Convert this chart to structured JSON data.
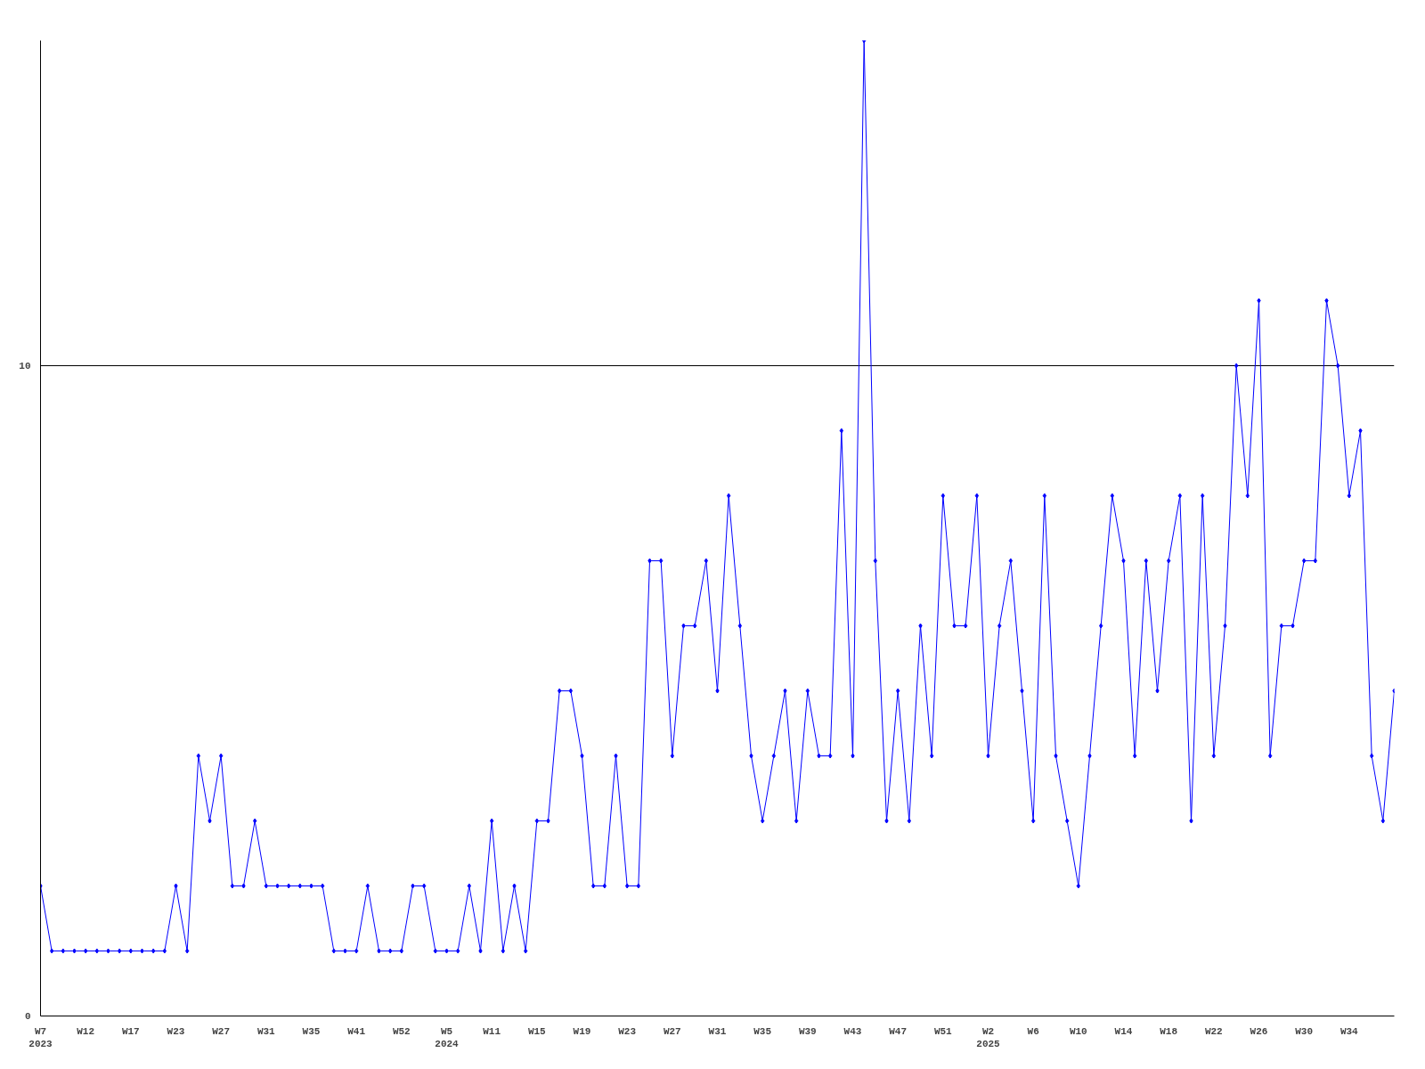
{
  "chart_data": {
    "type": "line",
    "categories": [
      "W7\n2023",
      null,
      null,
      null,
      "W12",
      null,
      null,
      null,
      "W17",
      null,
      null,
      null,
      "W23",
      null,
      null,
      null,
      "W27",
      null,
      null,
      null,
      "W31",
      null,
      null,
      null,
      "W35",
      null,
      null,
      null,
      "W41",
      null,
      null,
      null,
      "W52",
      null,
      null,
      null,
      "W5\n2024",
      null,
      null,
      null,
      "W11",
      null,
      null,
      null,
      "W15",
      null,
      null,
      null,
      "W19",
      null,
      null,
      null,
      "W23",
      null,
      null,
      null,
      "W27",
      null,
      null,
      null,
      "W31",
      null,
      null,
      null,
      "W35",
      null,
      null,
      null,
      "W39",
      null,
      null,
      null,
      "W43",
      null,
      null,
      null,
      "W47",
      null,
      null,
      null,
      "W51",
      null,
      null,
      null,
      "W2\n2025",
      null,
      null,
      null,
      "W6",
      null,
      null,
      null,
      "W10",
      null,
      null,
      null,
      "W14",
      null,
      null,
      null,
      "W18",
      null,
      null,
      null,
      "W22",
      null,
      null,
      null,
      "W26",
      null,
      null,
      null,
      "W30",
      null,
      null,
      null,
      "W34",
      null,
      null,
      null,
      null
    ],
    "series": [
      {
        "color": "#0000ff",
        "values": [
          2,
          1,
          1,
          1,
          1,
          1,
          1,
          1,
          1,
          1,
          1,
          1,
          2,
          1,
          4,
          3,
          4,
          2,
          2,
          3,
          2,
          2,
          2,
          2,
          2,
          2,
          1,
          1,
          1,
          2,
          1,
          1,
          1,
          2,
          2,
          1,
          1,
          1,
          2,
          1,
          3,
          1,
          2,
          1,
          3,
          3,
          5,
          5,
          4,
          2,
          2,
          4,
          2,
          2,
          7,
          7,
          4,
          6,
          6,
          7,
          5,
          8,
          6,
          4,
          3,
          4,
          5,
          3,
          5,
          4,
          4,
          9,
          4,
          15,
          7,
          3,
          5,
          3,
          6,
          4,
          8,
          6,
          6,
          8,
          4,
          6,
          7,
          5,
          3,
          8,
          4,
          3,
          2,
          4,
          6,
          8,
          7,
          4,
          7,
          5,
          7,
          8,
          3,
          8,
          4,
          6,
          10,
          8,
          11,
          4,
          6,
          6,
          7,
          7,
          11,
          10,
          8,
          9,
          4,
          3,
          5
        ]
      }
    ],
    "ylim": [
      0,
      15
    ],
    "yticks": [
      0,
      10
    ],
    "grid": "y",
    "marker": "diamond",
    "line_style": "solid"
  }
}
